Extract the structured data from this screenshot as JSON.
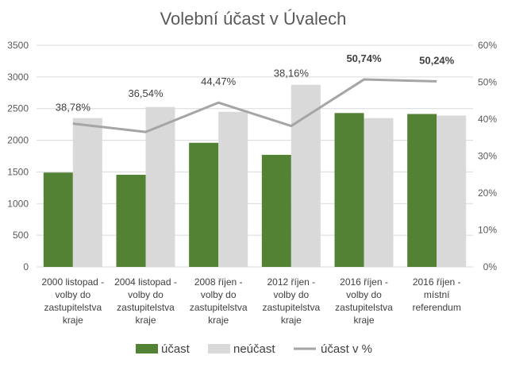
{
  "chart_data": {
    "type": "bar",
    "title": "Volební účast v Úvalech",
    "categories": [
      [
        "2000 listopad -",
        "volby do",
        "zastupitelstva",
        "kraje"
      ],
      [
        "2004 listopad -",
        "volby do",
        "zastupitelstva",
        "kraje"
      ],
      [
        "2008 říjen -",
        "volby do",
        "zastupitelstva",
        "kraje"
      ],
      [
        "2012 říjen -",
        "volby do",
        "zastupitelstva",
        "kraje"
      ],
      [
        "2016 říjen -",
        "volby do",
        "zastupitelstva",
        "kraje"
      ],
      [
        "2016 říjen -",
        "místní",
        "referendum"
      ]
    ],
    "series": [
      {
        "name": "účast",
        "type": "bar",
        "axis": "left",
        "color": "#548235",
        "values": [
          1490,
          1455,
          1960,
          1770,
          2430,
          2415
        ]
      },
      {
        "name": "neúčast",
        "type": "bar",
        "axis": "left",
        "color": "#d9d9d9",
        "values": [
          2350,
          2525,
          2450,
          2875,
          2350,
          2390
        ]
      },
      {
        "name": "účast v %",
        "type": "line",
        "axis": "right",
        "color": "#a5a5a5",
        "values": [
          38.78,
          36.54,
          44.47,
          38.16,
          50.74,
          50.24
        ]
      }
    ],
    "data_labels": [
      "38,78%",
      "36,54%",
      "44,47%",
      "38,16%",
      "50,74%",
      "50,24%"
    ],
    "bold_labels": [
      false,
      false,
      false,
      false,
      true,
      true
    ],
    "ylim_left": [
      0,
      3500
    ],
    "yticks_left": [
      "0",
      "500",
      "1000",
      "1500",
      "2000",
      "2500",
      "3000",
      "3500"
    ],
    "ylim_right": [
      0,
      60
    ],
    "yticks_right": [
      "0%",
      "10%",
      "20%",
      "30%",
      "40%",
      "50%",
      "60%"
    ],
    "grid": true,
    "legend_position": "bottom"
  }
}
